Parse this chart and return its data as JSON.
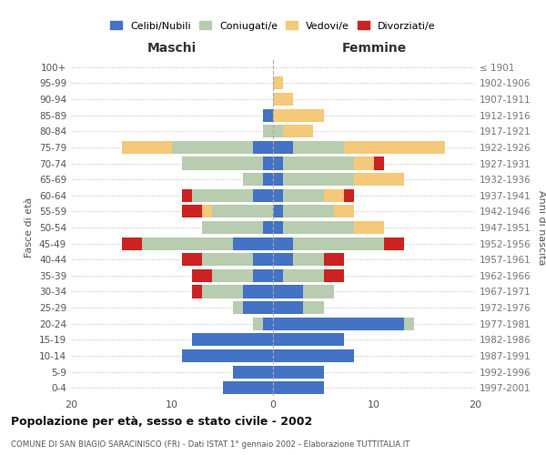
{
  "age_groups": [
    "0-4",
    "5-9",
    "10-14",
    "15-19",
    "20-24",
    "25-29",
    "30-34",
    "35-39",
    "40-44",
    "45-49",
    "50-54",
    "55-59",
    "60-64",
    "65-69",
    "70-74",
    "75-79",
    "80-84",
    "85-89",
    "90-94",
    "95-99",
    "100+"
  ],
  "birth_years": [
    "1997-2001",
    "1992-1996",
    "1987-1991",
    "1982-1986",
    "1977-1981",
    "1972-1976",
    "1967-1971",
    "1962-1966",
    "1957-1961",
    "1952-1956",
    "1947-1951",
    "1942-1946",
    "1937-1941",
    "1932-1936",
    "1927-1931",
    "1922-1926",
    "1917-1921",
    "1912-1916",
    "1907-1911",
    "1902-1906",
    "≤ 1901"
  ],
  "male": {
    "celibi": [
      5,
      4,
      9,
      8,
      1,
      3,
      3,
      2,
      2,
      4,
      1,
      0,
      2,
      1,
      1,
      2,
      0,
      1,
      0,
      0,
      0
    ],
    "coniugati": [
      0,
      0,
      0,
      0,
      1,
      1,
      4,
      4,
      5,
      9,
      6,
      6,
      6,
      2,
      8,
      8,
      1,
      0,
      0,
      0,
      0
    ],
    "vedovi": [
      0,
      0,
      0,
      0,
      0,
      0,
      0,
      0,
      0,
      0,
      0,
      1,
      0,
      0,
      0,
      5,
      0,
      0,
      0,
      0,
      0
    ],
    "divorziati": [
      0,
      0,
      0,
      0,
      0,
      0,
      1,
      2,
      2,
      2,
      0,
      2,
      1,
      0,
      0,
      0,
      0,
      0,
      0,
      0,
      0
    ]
  },
  "female": {
    "nubili": [
      5,
      5,
      8,
      7,
      13,
      3,
      3,
      1,
      2,
      2,
      1,
      1,
      1,
      1,
      1,
      2,
      0,
      0,
      0,
      0,
      0
    ],
    "coniugate": [
      0,
      0,
      0,
      0,
      1,
      2,
      3,
      4,
      3,
      9,
      7,
      5,
      4,
      7,
      7,
      5,
      1,
      0,
      0,
      0,
      0
    ],
    "vedove": [
      0,
      0,
      0,
      0,
      0,
      0,
      0,
      0,
      0,
      0,
      3,
      2,
      2,
      5,
      2,
      10,
      3,
      5,
      2,
      1,
      0
    ],
    "divorziate": [
      0,
      0,
      0,
      0,
      0,
      0,
      0,
      2,
      2,
      2,
      0,
      0,
      1,
      0,
      1,
      0,
      0,
      0,
      0,
      0,
      0
    ]
  },
  "colors": {
    "celibi_nubili": "#4472C4",
    "coniugati": "#B8CCB0",
    "vedovi": "#F5C97A",
    "divorziati": "#CC2222"
  },
  "xlim": 20,
  "title": "Popolazione per età, sesso e stato civile - 2002",
  "subtitle": "COMUNE DI SAN BIAGIO SARACINISCO (FR) - Dati ISTAT 1° gennaio 2002 - Elaborazione TUTTITALIA.IT",
  "ylabel_left": "Fasce di età",
  "ylabel_right": "Anni di nascita",
  "xlabel_left": "Maschi",
  "xlabel_right": "Femmine",
  "legend_labels": [
    "Celibi/Nubili",
    "Coniugati/e",
    "Vedovi/e",
    "Divorziati/e"
  ],
  "bar_height": 0.8
}
